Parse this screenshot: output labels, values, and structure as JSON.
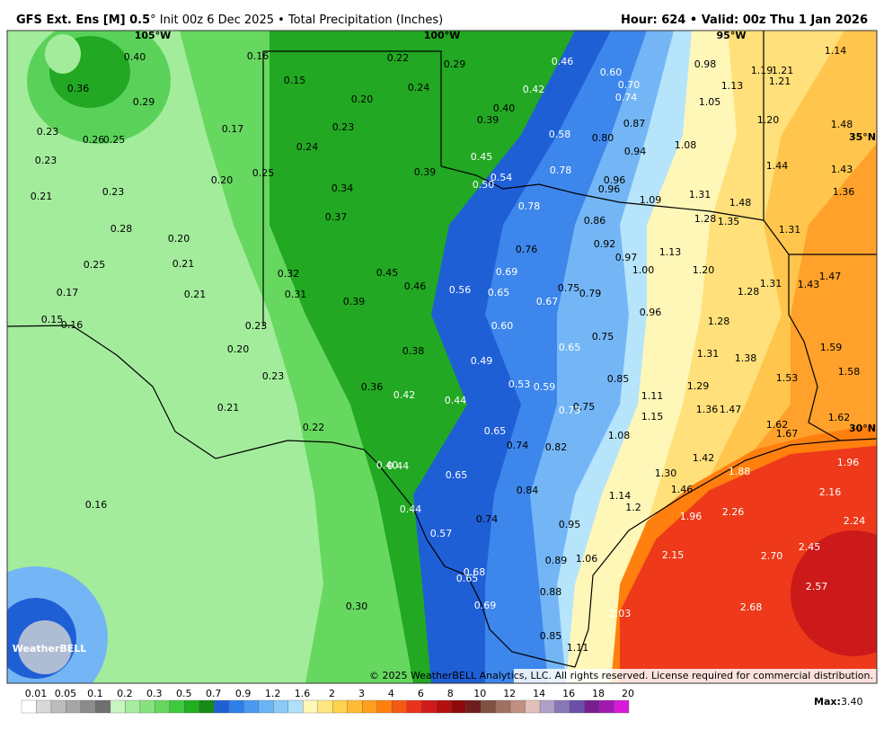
{
  "header": {
    "title_bold": "GFS Ext.  Ens [M] 0.5",
    "title_rest": "° Init 00z 6 Dec 2025 • Total Precipitation (Inches)",
    "valid": "Hour: 624 • Valid: 00z Thu 1 Jan 2026"
  },
  "map": {
    "grid_labels": [
      "105°W",
      "100°W",
      "95°W",
      "35°N",
      "30°N"
    ],
    "labels": [
      "0.40",
      "0.16",
      "0.22",
      "0.29",
      "0.46",
      "0.60",
      "0.98",
      "1.13",
      "1.19",
      "1.21",
      "1.21",
      "1.14",
      "0.36",
      "0.15",
      "0.24",
      "0.42",
      "0.70",
      "0.29",
      "0.20",
      "0.40",
      "0.74",
      "1.05",
      "0.39",
      "0.87",
      "1.20",
      "1.48",
      "0.23",
      "0.17",
      "0.23",
      "0.58",
      "0.80",
      "0.26",
      "0.25",
      "1.08",
      "0.24",
      "0.94",
      "0.45",
      "0.23",
      "0.39",
      "0.78",
      "1.44",
      "1.43",
      "0.25",
      "0.54",
      "0.96",
      "0.50",
      "0.20",
      "0.96",
      "0.34",
      "1.36",
      "0.21",
      "0.23",
      "1.31",
      "1.09",
      "1.48",
      "0.78",
      "0.37",
      "0.86",
      "1.28",
      "1.35",
      "1.31",
      "0.28",
      "0.20",
      "0.92",
      "0.76",
      "1.13",
      "0.97",
      "0.25",
      "0.21",
      "1.00",
      "1.20",
      "0.69",
      "0.45",
      "1.47",
      "0.32",
      "1.31",
      "1.43",
      "0.46",
      "0.56",
      "0.65",
      "0.75",
      "0.79",
      "1.28",
      "0.17",
      "0.21",
      "0.31",
      "0.39",
      "0.67",
      "0.96",
      "0.15",
      "0.16",
      "0.23",
      "0.60",
      "1.28",
      "0.75",
      "0.65",
      "0.20",
      "0.38",
      "1.59",
      "1.31",
      "1.38",
      "0.49",
      "1.58",
      "0.23",
      "1.53",
      "0.85",
      "0.53",
      "0.59",
      "0.36",
      "1.29",
      "0.42",
      "1.11",
      "0.44",
      "0.21",
      "0.75",
      "0.73",
      "1.36",
      "1.47",
      "1.15",
      "1.62",
      "1.62",
      "0.22",
      "1.67",
      "0.65",
      "1.08",
      "0.74",
      "0.82",
      "1.42",
      "1.96",
      "0.40",
      "0.44",
      "1.88",
      "1.30",
      "0.65",
      "1.46",
      "0.84",
      "2.16",
      "1.14",
      "1.2",
      "0.16",
      "0.44",
      "2.26",
      "1.96",
      "0.74",
      "2.24",
      "0.95",
      "0.57",
      "2.45",
      "2.15",
      "2.70",
      "1.06",
      "0.89",
      "0.68",
      "0.65",
      "2.57",
      "0.88",
      "0.30",
      "0.69",
      "2.68",
      "2.03",
      "0.85",
      "1.11"
    ],
    "copyright": "© 2025 WeatherBELL Analytics, LLC. All rights reserved. License required for commercial distribution.",
    "logo": "WeatherBELL"
  },
  "legend": {
    "ticks": [
      "0.01",
      "0.05",
      "0.1",
      "0.2",
      "0.3",
      "0.5",
      "0.7",
      "0.9",
      "1.2",
      "1.6",
      "2",
      "3",
      "4",
      "6",
      "8",
      "10",
      "12",
      "14",
      "16",
      "18",
      "20"
    ],
    "colors": [
      "#ffffff",
      "#d9d9d9",
      "#bdbdbd",
      "#a6a6a6",
      "#8c8c8c",
      "#707070",
      "#c8f5c0",
      "#a6eca0",
      "#86e27f",
      "#66d85f",
      "#3fc93f",
      "#22b022",
      "#158a15",
      "#1f5fd6",
      "#2f7fe8",
      "#4a9bf0",
      "#6ab4f5",
      "#8ccbf8",
      "#b0e0fb",
      "#fff7b8",
      "#ffe680",
      "#ffd24d",
      "#ffbb33",
      "#ff9f1f",
      "#ff7f0f",
      "#f55a14",
      "#e8331a",
      "#d21a1a",
      "#b50f0f",
      "#8f0a0a",
      "#6e1e1e",
      "#805040",
      "#a07060",
      "#c09080",
      "#e0c0b8",
      "#b0a0c8",
      "#8878b8",
      "#6a50a8",
      "#7a1f8f",
      "#a01ab0",
      "#d81ad8"
    ],
    "max_label": "Max:",
    "max_value": "3.40"
  }
}
